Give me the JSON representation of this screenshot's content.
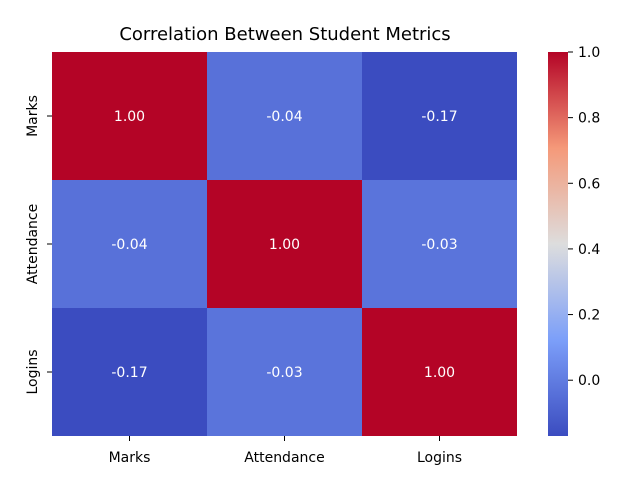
{
  "chart_data": {
    "type": "heatmap",
    "title": "Correlation Between Student Metrics",
    "xlabel": "",
    "ylabel": "",
    "x_categories": [
      "Marks",
      "Attendance",
      "Logins"
    ],
    "y_categories": [
      "Marks",
      "Attendance",
      "Logins"
    ],
    "values": [
      [
        1.0,
        -0.04,
        -0.17
      ],
      [
        -0.04,
        1.0,
        -0.03
      ],
      [
        -0.17,
        -0.03,
        1.0
      ]
    ],
    "value_labels": [
      [
        "1.00",
        "-0.04",
        "-0.17"
      ],
      [
        "-0.04",
        "1.00",
        "-0.03"
      ],
      [
        "-0.17",
        "-0.03",
        "1.00"
      ]
    ],
    "colormap": "coolwarm",
    "color_range": [
      -0.17,
      1.0
    ],
    "colorbar_ticks": [
      "1.0",
      "0.8",
      "0.6",
      "0.4",
      "0.2",
      "0.0"
    ],
    "colorbar_tick_values": [
      1.0,
      0.8,
      0.6,
      0.4,
      0.2,
      0.0
    ]
  }
}
